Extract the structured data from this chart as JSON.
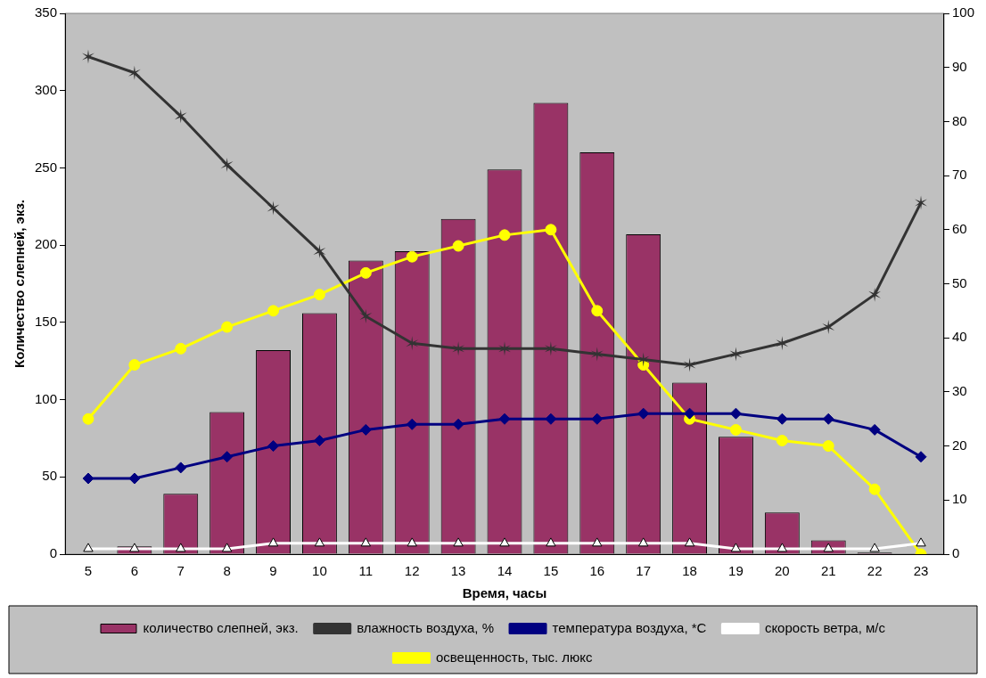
{
  "chart_data": {
    "type": "bar",
    "xlabel": "Время, часы",
    "ylabel": "Количество слепней, экз.",
    "categories": [
      "5",
      "6",
      "7",
      "8",
      "9",
      "10",
      "11",
      "12",
      "13",
      "14",
      "15",
      "16",
      "17",
      "18",
      "19",
      "20",
      "21",
      "22",
      "23"
    ],
    "series": [
      {
        "name": "количество слепней, экз.",
        "color": "#993366",
        "values": [
          0,
          5,
          39,
          92,
          132,
          156,
          190,
          196,
          217,
          249,
          292,
          260,
          207,
          111,
          76,
          27,
          9,
          1,
          0
        ]
      },
      {
        "name": "влажность воздуха, %",
        "type": "line",
        "axis": "y2",
        "marker": "cross",
        "color": "#333333",
        "values": [
          92,
          89,
          81,
          72,
          64,
          56,
          44,
          39,
          38,
          38,
          38,
          37,
          36,
          35,
          37,
          39,
          42,
          48,
          65
        ]
      },
      {
        "name": "температура воздуха, *С",
        "type": "line",
        "axis": "y2",
        "marker": "diamond",
        "color": "#000080",
        "values": [
          14,
          14,
          16,
          18,
          20,
          21,
          23,
          24,
          24,
          25,
          25,
          25,
          26,
          26,
          26,
          25,
          25,
          23,
          18
        ]
      },
      {
        "name": "скорость ветра, м/с",
        "type": "line",
        "axis": "y2",
        "marker": "triangle",
        "color": "#ffffff",
        "values": [
          1,
          1,
          1,
          1,
          2,
          2,
          2,
          2,
          2,
          2,
          2,
          2,
          2,
          2,
          1,
          1,
          1,
          1,
          2
        ]
      },
      {
        "name": "освещенность, тыс. люкс",
        "type": "line",
        "axis": "y2",
        "marker": "circle",
        "color": "#ffff00",
        "values": [
          25,
          35,
          38,
          42,
          45,
          48,
          52,
          55,
          57,
          59,
          60,
          45,
          35,
          25,
          23,
          21,
          20,
          12,
          0
        ]
      }
    ],
    "ylim": [
      0,
      350
    ],
    "yticks": [
      0,
      50,
      100,
      150,
      200,
      250,
      300,
      350
    ],
    "y2lim": [
      0,
      100
    ],
    "y2ticks": [
      0,
      10,
      20,
      30,
      40,
      50,
      60,
      70,
      80,
      90,
      100
    ],
    "grid": false,
    "legend": "bottom"
  }
}
